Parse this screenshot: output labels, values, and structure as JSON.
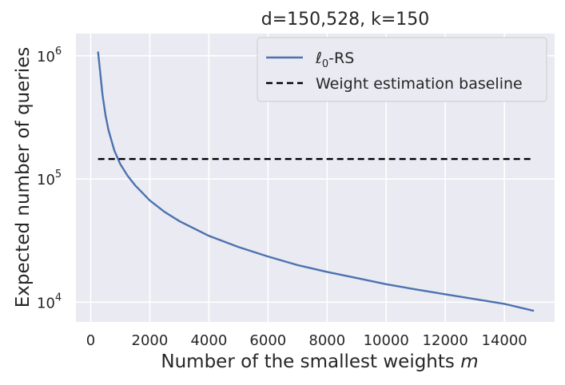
{
  "chart_data": {
    "type": "line",
    "title": "d=150,528, k=150",
    "xlabel": "Number of the smallest weights",
    "xlabel_var": "m",
    "ylabel": "Expected number of queries",
    "xlim": [
      -500,
      15700
    ],
    "ylim_log10": [
      3.84,
      6.18
    ],
    "x_ticks": [
      0,
      2000,
      4000,
      6000,
      8000,
      10000,
      12000,
      14000
    ],
    "y_ticks": [
      {
        "value": 10000,
        "base": "10",
        "exp": "4"
      },
      {
        "value": 100000,
        "base": "10",
        "exp": "5"
      },
      {
        "value": 1000000,
        "base": "10",
        "exp": "6"
      }
    ],
    "y_scale": "log",
    "grid": true,
    "legend_position": "top-right",
    "series": [
      {
        "name": "ℓ0-RS",
        "name_main": "ℓ",
        "name_sub": "0",
        "name_rest": "-RS",
        "style": "solid",
        "color": "#4c72b0",
        "x": [
          250,
          300,
          400,
          500,
          600,
          800,
          1000,
          1250,
          1500,
          2000,
          2500,
          3000,
          4000,
          5000,
          6000,
          7000,
          8000,
          9000,
          10000,
          11000,
          12000,
          13000,
          14000,
          15000
        ],
        "y": [
          1080000,
          820000,
          480000,
          330000,
          250000,
          170000,
          132000,
          106000,
          89000,
          67000,
          54000,
          45500,
          34500,
          28000,
          23500,
          20000,
          17600,
          15700,
          14000,
          12700,
          11600,
          10600,
          9700,
          8500
        ]
      },
      {
        "name": "Weight estimation baseline",
        "style": "dashed",
        "color": "#000000",
        "x": [
          250,
          15000
        ],
        "y": [
          145000,
          145000
        ]
      }
    ]
  }
}
